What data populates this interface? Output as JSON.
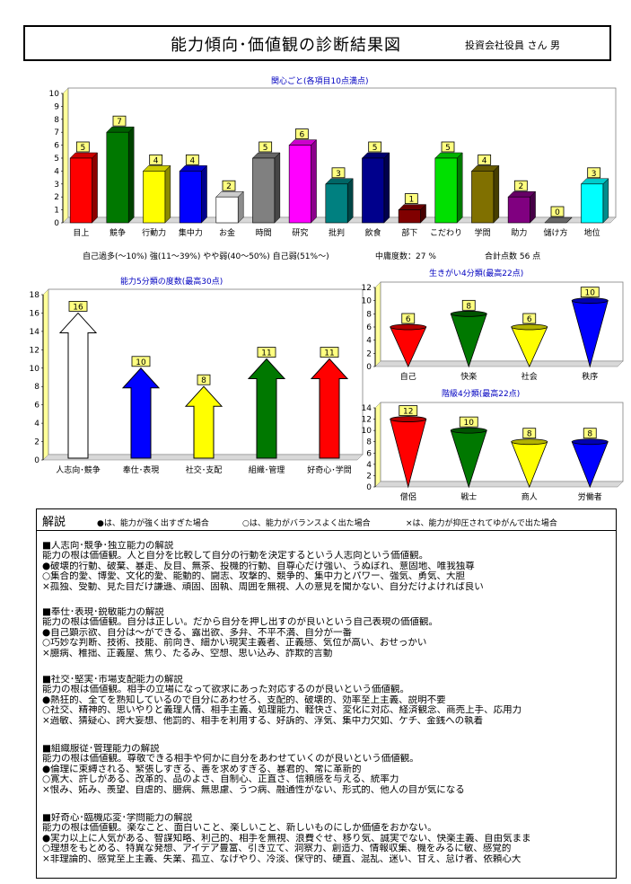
{
  "header": {
    "title": "能力傾向･価値観の診断結果図",
    "person": "投資会社役員 さん 男"
  },
  "chart_data": [
    {
      "type": "bar",
      "title": "関心ごと(各項目10点満点)",
      "categories": [
        "目上",
        "競争",
        "行動力",
        "集中力",
        "お金",
        "時間",
        "研究",
        "批判",
        "飲食",
        "部下",
        "こだわり",
        "学問",
        "助力",
        "儲け方",
        "地位"
      ],
      "values": [
        5,
        7,
        4,
        4,
        2,
        5,
        6,
        3,
        5,
        1,
        5,
        4,
        2,
        0,
        3
      ],
      "colors": [
        "#ff0000",
        "#007800",
        "#ffff00",
        "#0000ff",
        "#ffffff",
        "#808080",
        "#ff00ff",
        "#008080",
        "#00008c",
        "#800000",
        "#00e000",
        "#807000",
        "#800080",
        "#808080",
        "#00ffff"
      ],
      "ylim": [
        0,
        10
      ],
      "yticks": [
        "0",
        "1",
        "2",
        "3",
        "4",
        "5",
        "6",
        "7",
        "8",
        "9",
        "10"
      ]
    },
    {
      "type": "bar",
      "title": "能力5分類の度数(最高30点)",
      "categories": [
        "人志向･競争",
        "奉仕･表現",
        "社交･支配",
        "組織･管理",
        "好奇心･学問"
      ],
      "values": [
        16,
        10,
        8,
        11,
        11
      ],
      "colors": [
        "#ffffff",
        "#0000ff",
        "#ffff00",
        "#007800",
        "#ff0000"
      ],
      "ylim": [
        0,
        18
      ],
      "yticks": [
        "0",
        "2",
        "4",
        "6",
        "8",
        "10",
        "12",
        "14",
        "16",
        "18"
      ]
    },
    {
      "type": "bar",
      "title": "生きがい4分類(最高22点)",
      "categories": [
        "自己",
        "快楽",
        "社会",
        "秩序"
      ],
      "values": [
        6,
        8,
        6,
        10
      ],
      "colors": [
        "#ff0000",
        "#007800",
        "#ffff00",
        "#0000ff"
      ],
      "ylim": [
        0,
        12
      ],
      "yticks": [
        "0",
        "2",
        "4",
        "6",
        "8",
        "10",
        "12"
      ]
    },
    {
      "type": "bar",
      "title": "階級4分類(最高22点)",
      "categories": [
        "僧侶",
        "戦士",
        "商人",
        "労働者"
      ],
      "values": [
        12,
        10,
        8,
        8
      ],
      "colors": [
        "#ff0000",
        "#007800",
        "#ffff00",
        "#0000ff"
      ],
      "ylim": [
        0,
        14
      ],
      "yticks": [
        "0",
        "2",
        "4",
        "6",
        "8",
        "10",
        "12",
        "14"
      ]
    }
  ],
  "legend_line": {
    "bands": "自己過多(～10%)  強(11～39%)  やや弱(40～50%)  自己弱(51%～)",
    "middle": "中庸度数：27 %",
    "total": "合計点数  56 点"
  },
  "explanation": {
    "title": "解説",
    "legend_strong": "●は、能力が強く出すぎた場合",
    "legend_balanced": "○は、能力がバランスよく出た場合",
    "legend_weak": "×は、能力が抑圧されてゆがんで出た場合",
    "sections": [
      {
        "heading": "■人志向･競争･独立能力の解説",
        "lines": [
          "能力の根は価値観。人と自分を比較して自分の行動を決定するという人志向という価値観。",
          "●破壊的行動、破棄、暴走、反目、無茶、投機的行動、自尊心だけ強い、うぬぼれ、意固地、唯我独尊",
          "○集合的愛、博愛、文化的愛、能動的、闘志、攻撃的、競争的、集中力とパワー、強気、勇気、大胆",
          "×孤独、受動、見た目だけ謙遜、頑固、固執、周囲を無視、人の意見を聞かない、自分だけよければ良い"
        ]
      },
      {
        "heading": "■奉仕･表現･鋭敏能力の解説",
        "lines": [
          "能力の根は価値観。自分は正しい。だから自分を押し出すのが良いという自己表現の価値観。",
          "●自己顕示欲、自分は～ができる、露出欲、多弁、不平不満、自分が一番",
          "○巧妙な判断、技術、技能、前向き、細かい現実主義者、正義感、気位が高い、おせっかい",
          "×臆病、稚拙、正義屋、焦り、たるみ、空想、思い込み、詐欺的言動"
        ]
      },
      {
        "heading": "■社交･堅実･市場支配能力の解説",
        "lines": [
          "能力の根は価値観。相手の立場になって欲求にあった対応するのが良いという価値観。",
          "●熱狂的、全てを熟知しているので自分にあわせろ、支配的、破壊的、効率至上主義、説明不要",
          "○社交、精神的、思いやりと義理人情、相手主義、処理能力、軽快さ、変化に対応、経済観念、商売上手、応用力",
          "×過敏、猜疑心、誇大妄想、他罰的、相手を利用する、好訴的、浮気、集中力欠如、ケチ、金銭への執着"
        ]
      },
      {
        "heading": "■組織服従･管理能力の解説",
        "lines": [
          "能力の根は価値観。尊敬できる相手や何かに自分をあわせていくのが良いという価値観。",
          "●倫理に束縛される、緊張しすぎる、善を求めすぎる、暴君的、常に革新的",
          "○寛大、許しがある、改革的、品のよさ、自制心、正直さ、信頼感を与える、統率力",
          "×恨み、妬み、羨望、自虐的、臆病、無思慮、うつ病、融通性がない、形式的、他人の目が気になる"
        ]
      },
      {
        "heading": "■好奇心･臨機応変･学問能力の解説",
        "lines": [
          "能力の根は価値観。楽なこと、面白いこと、楽しいこと、新しいものにしか価値をおかない。",
          "●実力以上に人気がある、智謀知略、利己的、相手を無視、浪費ぐせ、移り気、誠実でない、快楽主義、自由気まま",
          "○理想をもとめる、特異な発想、アイデア豊富、引き立て、洞察力、創造力、情報収集、機をみるに敏、感覚的",
          "×非理論的、感覚至上主義、失業、孤立、なげやり、冷淡、保守的、硬直、混乱、迷い、甘え、怠け者、依頼心大"
        ]
      }
    ]
  }
}
